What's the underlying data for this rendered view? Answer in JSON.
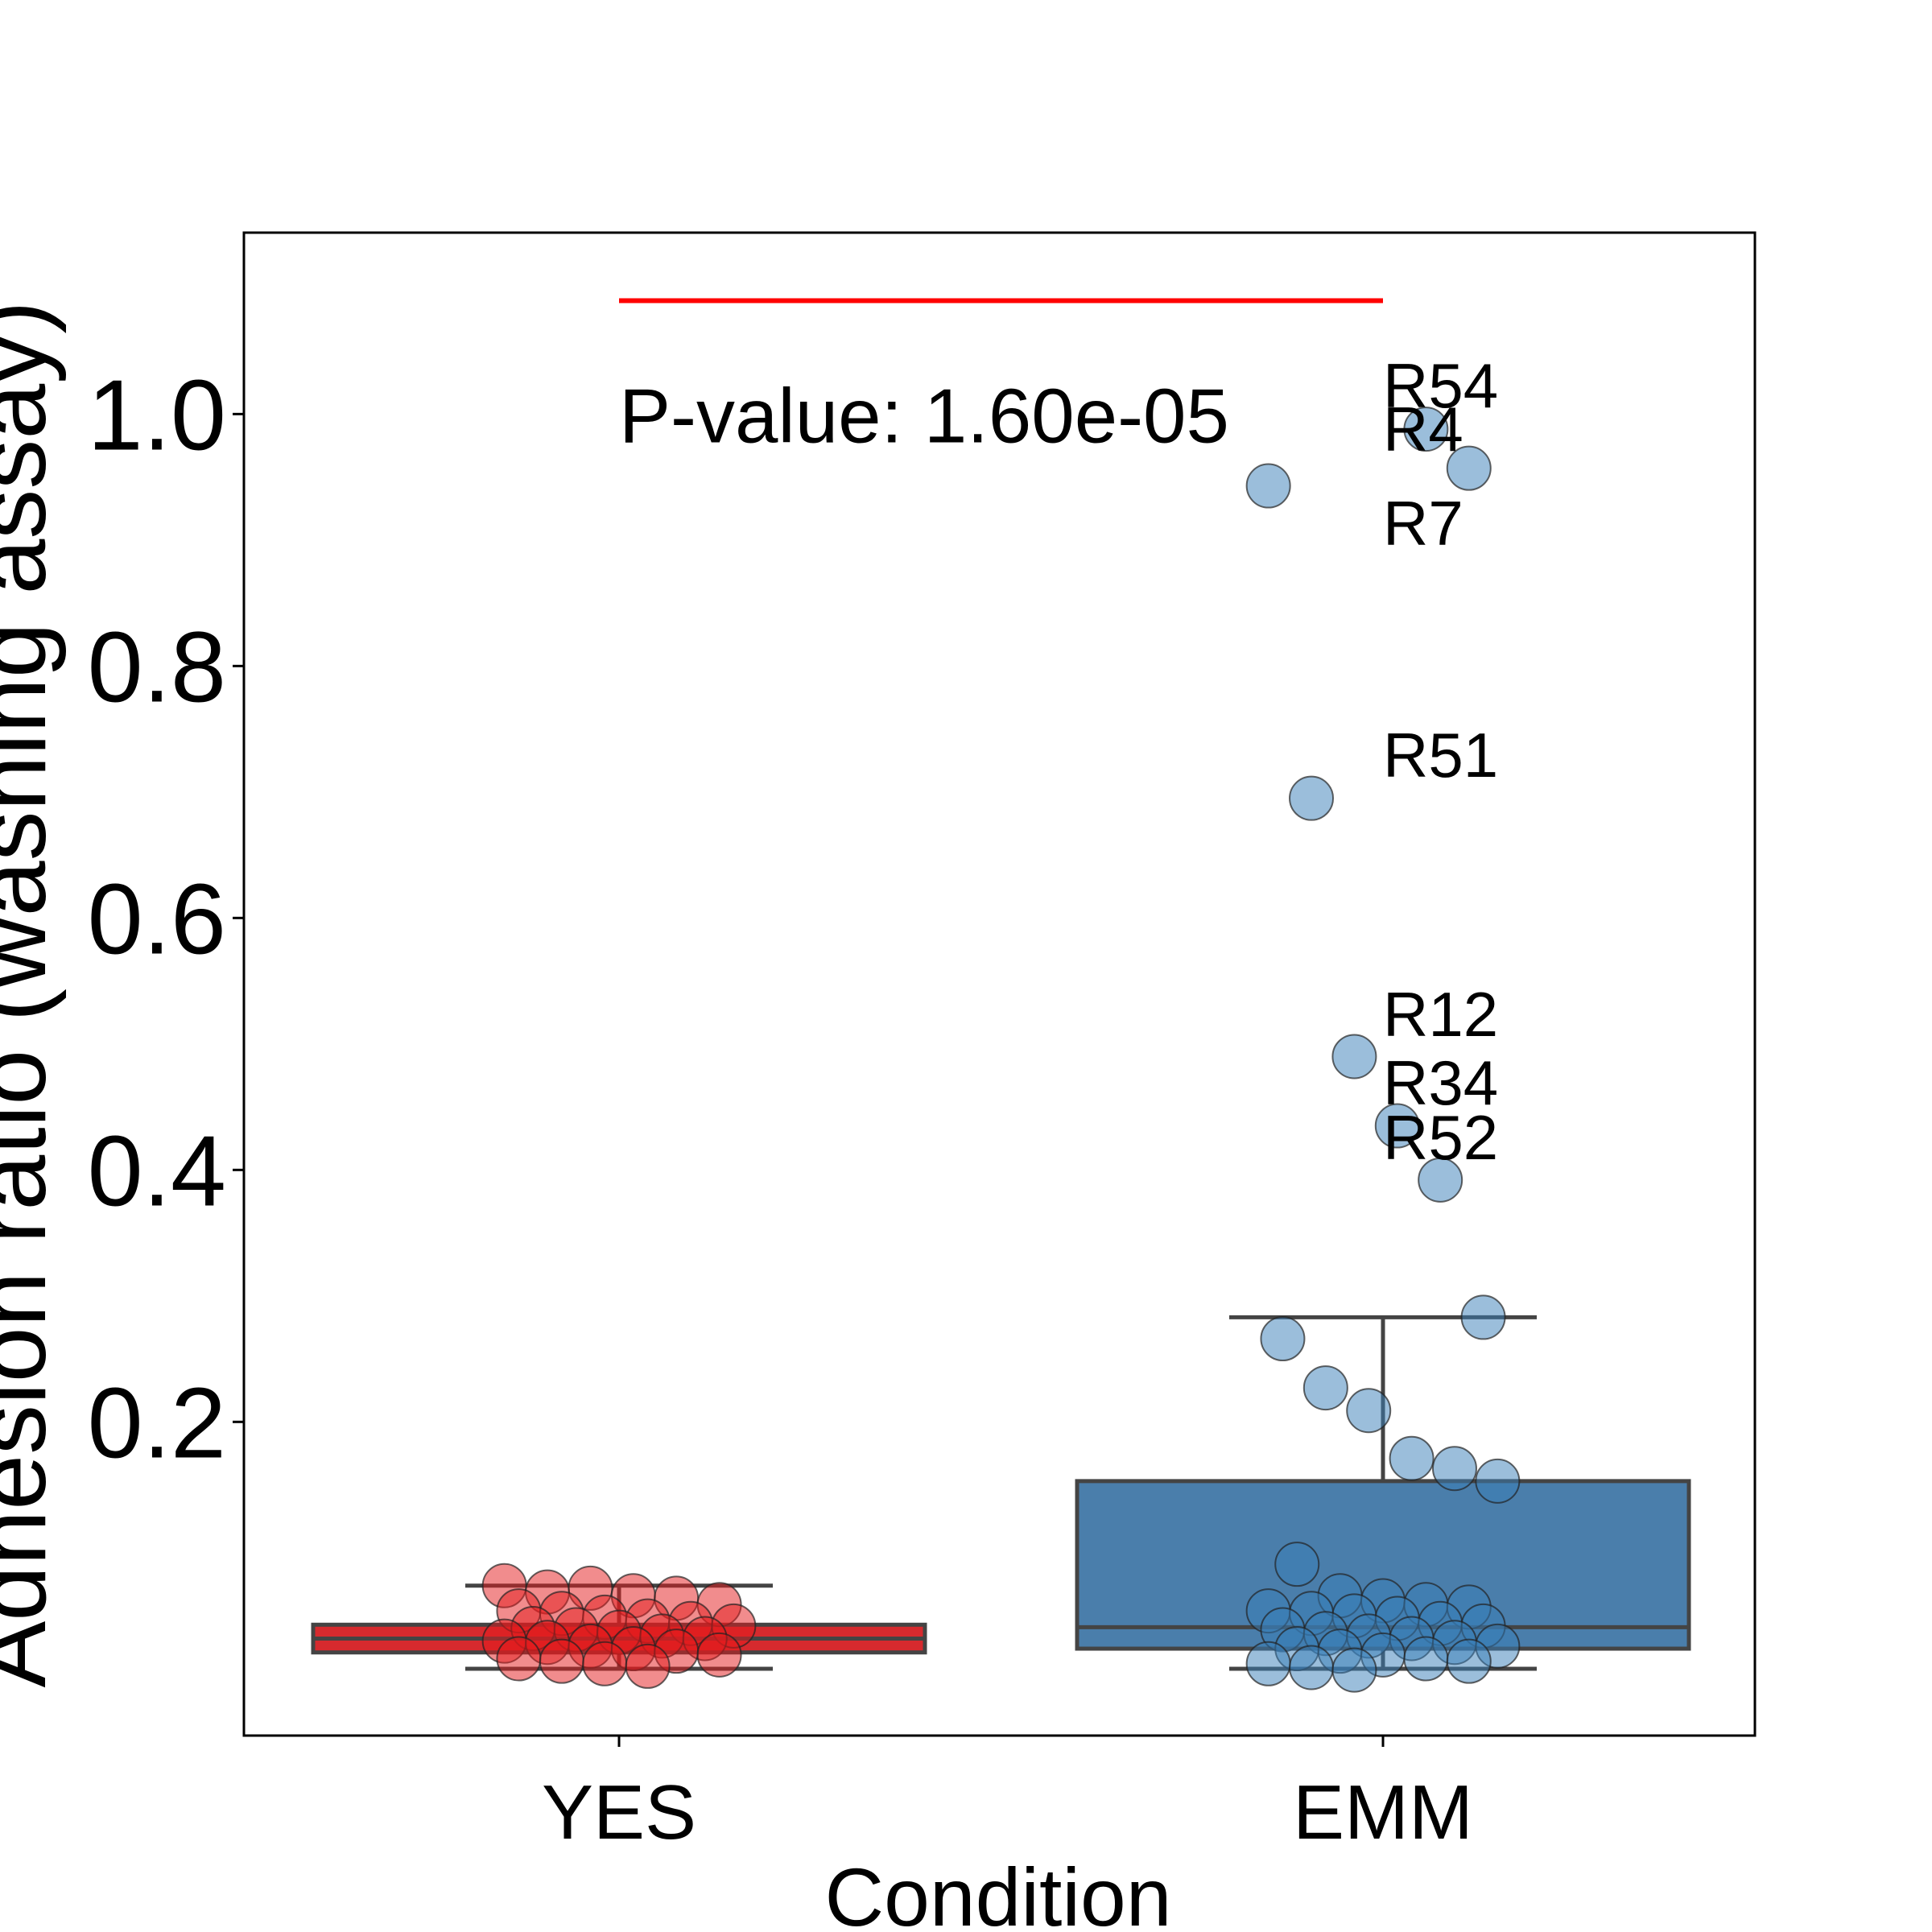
{
  "chart_data": {
    "type": "box",
    "x_label": "Condition",
    "y_label": "Adhesion ratio (washing assay)",
    "categories": [
      "YES",
      "EMM"
    ],
    "ylim": [
      -0.049,
      1.144
    ],
    "yticks": [
      0.2,
      0.4,
      0.6,
      0.8,
      {
        "value": 1,
        "label": "1.0"
      }
    ],
    "series": [
      {
        "name": "YES",
        "color": "#d62a2e",
        "point_color": "#e41a1c",
        "whisker_low": 0.004,
        "q1": 0.017,
        "median": 0.028,
        "q3": 0.039,
        "whisker_high": 0.07,
        "points": [
          0.07,
          0.065,
          0.068,
          0.062,
          0.06,
          0.055,
          0.05,
          0.048,
          0.045,
          0.042,
          0.04,
          0.038,
          0.036,
          0.035,
          0.033,
          0.03,
          0.028,
          0.026,
          0.025,
          0.022,
          0.02,
          0.018,
          0.015,
          0.012,
          0.01,
          0.008,
          0.006
        ],
        "point_labels": [
          null,
          null,
          null,
          null,
          null,
          null,
          null,
          null,
          null,
          null,
          null,
          null,
          null,
          null,
          null,
          null,
          null,
          null,
          null,
          null,
          null,
          null,
          null,
          null,
          null,
          null,
          null
        ]
      },
      {
        "name": "EMM",
        "color": "#4a7eab",
        "point_color": "#377eb8",
        "whisker_low": 0.004,
        "q1": 0.02,
        "median": 0.037,
        "q3": 0.153,
        "whisker_high": 0.283,
        "points": [
          0.988,
          0.957,
          0.943,
          0.695,
          0.49,
          0.435,
          0.392,
          0.283,
          0.266,
          0.227,
          0.209,
          0.171,
          0.163,
          0.153,
          0.087,
          0.062,
          0.058,
          0.055,
          0.053,
          0.05,
          0.048,
          0.046,
          0.044,
          0.04,
          0.038,
          0.035,
          0.032,
          0.03,
          0.028,
          0.025,
          0.022,
          0.02,
          0.018,
          0.015,
          0.012,
          0.01,
          0.008,
          0.005,
          0.003
        ],
        "point_labels": [
          "R54",
          "R4",
          "R7",
          "R51",
          "R12",
          "R34",
          "R52",
          null,
          null,
          null,
          null,
          null,
          null,
          null,
          null,
          null,
          null,
          null,
          null,
          null,
          null,
          null,
          null,
          null,
          null,
          null,
          null,
          null,
          null,
          null,
          null,
          null,
          null,
          null,
          null,
          null,
          null,
          null,
          null
        ]
      }
    ],
    "significance": {
      "y": 1.09,
      "color": "#ff0000",
      "text": "P-value: 1.60e-05"
    }
  }
}
